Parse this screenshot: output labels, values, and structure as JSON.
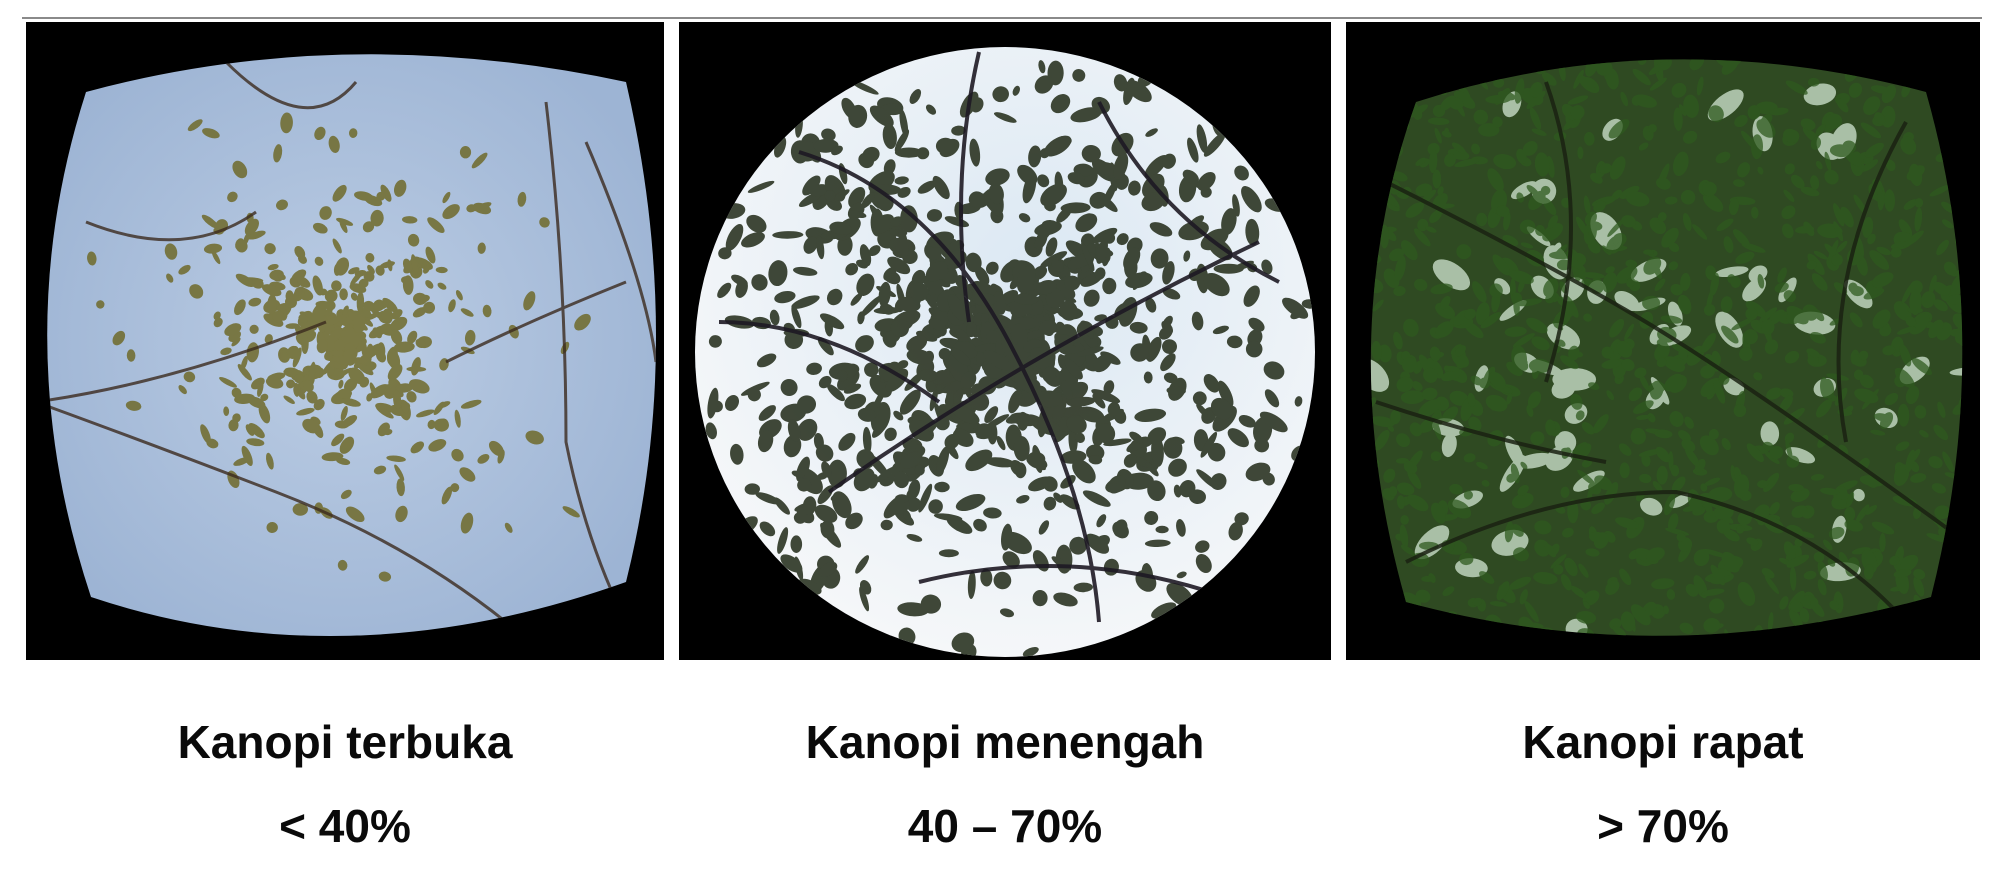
{
  "panels": [
    {
      "title": "Kanopi terbuka",
      "value": "< 40%",
      "sky_color": "#a8bedb",
      "foliage_color": "#6f6a2a",
      "branch_color": "#3b2a1e"
    },
    {
      "title": "Kanopi menengah",
      "value": "40 – 70%",
      "sky_color": "#eef2f6",
      "foliage_color": "#2b3422",
      "branch_color": "#1e1a24"
    },
    {
      "title": "Kanopi rapat",
      "value": "> 70%",
      "sky_color": "#c8dcc8",
      "foliage_color": "#2f5a1f",
      "branch_color": "#1a2212"
    }
  ],
  "accents": {
    "frame": "#000000",
    "divider": "#8a8a8a",
    "text": "#0a0a0a"
  }
}
